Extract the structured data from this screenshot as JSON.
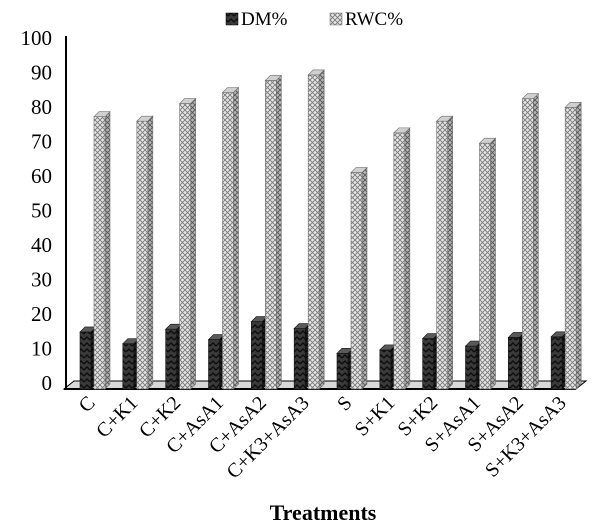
{
  "chart_data": {
    "type": "bar",
    "style": "3d-clustered-column",
    "categories": [
      "C",
      "C+K1",
      "C+K2",
      "C+AsA1",
      "C+AsA2",
      "C+K3+AsA3",
      "S",
      "S+K1",
      "S+K2",
      "S+AsA1",
      "S+AsA2",
      "S+K3+AsA3"
    ],
    "series": [
      {
        "name": "DM%",
        "values": [
          14.8,
          11.4,
          15.6,
          12.6,
          17.8,
          15.8,
          8.6,
          9.6,
          12.9,
          10.7,
          13.2,
          13.4
        ],
        "color": "#303030",
        "pattern": "zigzag"
      },
      {
        "name": "RWC%",
        "values": [
          77.2,
          75.9,
          81.0,
          84.2,
          87.7,
          89.3,
          61.0,
          72.5,
          75.9,
          69.5,
          82.4,
          79.9
        ],
        "color": "#bfbfbf",
        "pattern": "crosshatch"
      }
    ],
    "title": "",
    "xlabel": "Treatments",
    "ylabel": "",
    "ylim": [
      0,
      100
    ],
    "yticks": [
      0,
      10,
      20,
      30,
      40,
      50,
      60,
      70,
      80,
      90,
      100
    ],
    "grid": false,
    "legend": "top-center"
  }
}
